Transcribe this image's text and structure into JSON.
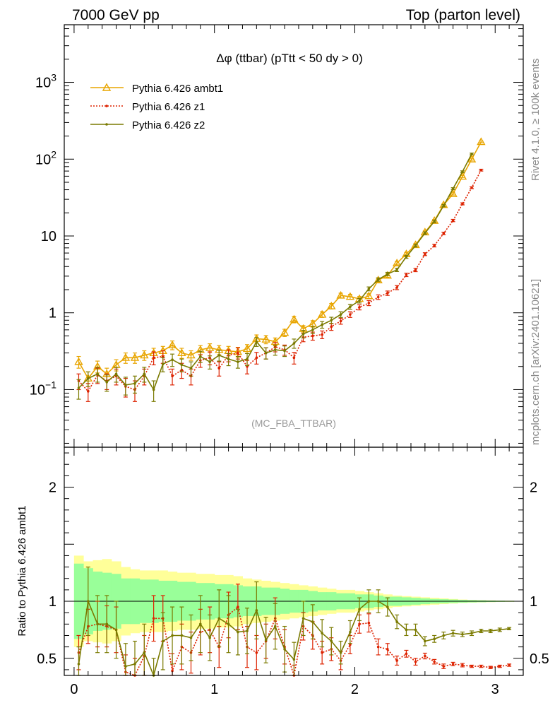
{
  "header": {
    "left_title": "7000 GeV pp",
    "right_title": "Top (parton level)"
  },
  "side_labels": {
    "rivet": "Rivet 4.1.0, ≥ 100k events",
    "mcplots": "mcplots.cern.ch [arXiv:2401.10621]"
  },
  "chart_data": {
    "type": "line",
    "title": "Δφ (ttbar) (pTtt < 50 dy > 0)",
    "watermark": "(MC_FBA_TTBAR)",
    "ylabel_ratio": "Ratio to Pythia 6.426 ambt1",
    "xlim": [
      -0.07,
      3.2
    ],
    "main_ylim_log10": [
      -1.75,
      3.75
    ],
    "ratio_ylim": [
      0.35,
      2.35
    ],
    "x_ticks": [
      "0",
      "1",
      "2",
      "3"
    ],
    "main_y_ticks": [
      "10^-1",
      "1",
      "10",
      "10^2",
      "10^3"
    ],
    "ratio_y_ticks": [
      "0.5",
      "1",
      "2"
    ],
    "x": [
      0.033,
      0.1,
      0.167,
      0.233,
      0.3,
      0.367,
      0.433,
      0.5,
      0.567,
      0.633,
      0.7,
      0.767,
      0.833,
      0.9,
      0.967,
      1.033,
      1.1,
      1.167,
      1.233,
      1.3,
      1.367,
      1.433,
      1.5,
      1.567,
      1.633,
      1.7,
      1.767,
      1.833,
      1.9,
      1.967,
      2.033,
      2.1,
      2.167,
      2.233,
      2.3,
      2.367,
      2.433,
      2.5,
      2.567,
      2.633,
      2.7,
      2.767,
      2.833,
      2.9,
      2.967,
      3.033,
      3.1
    ],
    "series": [
      {
        "name": "Pythia 6.426 ambt1",
        "color": "#e8a500",
        "style": "solid-triangle",
        "values": [
          0.23,
          0.14,
          0.2,
          0.16,
          0.21,
          0.26,
          0.26,
          0.28,
          0.3,
          0.32,
          0.38,
          0.3,
          0.28,
          0.33,
          0.35,
          0.33,
          0.32,
          0.31,
          0.34,
          0.46,
          0.45,
          0.42,
          0.55,
          0.82,
          0.62,
          0.72,
          0.95,
          1.22,
          1.68,
          1.62,
          1.52,
          1.65,
          2.66,
          3.06,
          4.42,
          5.82,
          7.65,
          11.2,
          15.8,
          25.4,
          35.3,
          59.5,
          99.8,
          168.0,
          0,
          0,
          0
        ],
        "errors": [
          0.04,
          0.03,
          0.035,
          0.03,
          0.035,
          0.04,
          0.04,
          0.04,
          0.045,
          0.045,
          0.05,
          0.045,
          0.04,
          0.045,
          0.045,
          0.045,
          0.045,
          0.045,
          0.045,
          0.055,
          0.055,
          0.05,
          0.06,
          0.08,
          0.06,
          0.07,
          0.08,
          0.1,
          0.12,
          0.12,
          0.11,
          0.12,
          0.15,
          0.17,
          0.22,
          0.28,
          0.35,
          0.45,
          0.6,
          0.9,
          1.2,
          1.8,
          2.8,
          4.5,
          0,
          0,
          0
        ]
      },
      {
        "name": "Pythia 6.426 z1",
        "color": "#dd2200",
        "style": "dotted-dot",
        "values": [
          0.13,
          0.095,
          0.155,
          0.13,
          0.15,
          0.11,
          0.1,
          0.15,
          0.26,
          0.27,
          0.15,
          0.18,
          0.15,
          0.24,
          0.26,
          0.19,
          0.28,
          0.3,
          0.2,
          0.26,
          0.3,
          0.36,
          0.33,
          0.26,
          0.48,
          0.5,
          0.52,
          0.66,
          0.78,
          0.95,
          1.18,
          1.34,
          1.6,
          1.8,
          2.13,
          3.12,
          3.61,
          5.8,
          7.5,
          10.8,
          15.9,
          26.2,
          42.5,
          72.0,
          0,
          0,
          0
        ],
        "errors": [
          0.03,
          0.025,
          0.035,
          0.03,
          0.035,
          0.03,
          0.03,
          0.035,
          0.05,
          0.05,
          0.035,
          0.04,
          0.035,
          0.045,
          0.05,
          0.04,
          0.05,
          0.05,
          0.04,
          0.045,
          0.05,
          0.05,
          0.05,
          0.045,
          0.06,
          0.06,
          0.06,
          0.07,
          0.07,
          0.08,
          0.09,
          0.1,
          0.11,
          0.12,
          0.13,
          0.16,
          0.18,
          0.25,
          0.3,
          0.4,
          0.55,
          0.8,
          1.2,
          2.0,
          0,
          0,
          0
        ]
      },
      {
        "name": "Pythia 6.426 z2",
        "color": "#7a7a00",
        "style": "solid-dot",
        "values": [
          0.105,
          0.14,
          0.16,
          0.125,
          0.16,
          0.115,
          0.12,
          0.16,
          0.1,
          0.215,
          0.245,
          0.21,
          0.19,
          0.27,
          0.23,
          0.28,
          0.25,
          0.23,
          0.25,
          0.42,
          0.3,
          0.33,
          0.32,
          0.4,
          0.53,
          0.6,
          0.7,
          0.8,
          0.95,
          1.2,
          1.44,
          2.05,
          2.71,
          3.2,
          3.62,
          5.35,
          7.5,
          10.9,
          15.5,
          24.8,
          41.3,
          68.5,
          117.0,
          0,
          0,
          0,
          0
        ],
        "errors": [
          0.03,
          0.03,
          0.035,
          0.03,
          0.035,
          0.03,
          0.03,
          0.035,
          0.03,
          0.045,
          0.045,
          0.04,
          0.04,
          0.045,
          0.045,
          0.045,
          0.045,
          0.04,
          0.045,
          0.055,
          0.05,
          0.05,
          0.05,
          0.055,
          0.06,
          0.065,
          0.07,
          0.075,
          0.08,
          0.09,
          0.1,
          0.12,
          0.14,
          0.16,
          0.18,
          0.24,
          0.3,
          0.4,
          0.55,
          0.8,
          1.2,
          1.9,
          3.0,
          0,
          0,
          0,
          0
        ]
      }
    ],
    "ratio_band_yellow": [
      0.4,
      0.35,
      0.36,
      0.37,
      0.35,
      0.3,
      0.28,
      0.27,
      0.27,
      0.27,
      0.26,
      0.25,
      0.25,
      0.24,
      0.24,
      0.23,
      0.23,
      0.22,
      0.2,
      0.19,
      0.18,
      0.17,
      0.16,
      0.15,
      0.14,
      0.13,
      0.12,
      0.11,
      0.1,
      0.1,
      0.09,
      0.08,
      0.07,
      0.06,
      0.05,
      0.045,
      0.04,
      0.035,
      0.03,
      0.025,
      0.02,
      0.015,
      0.012,
      0.01,
      0.008,
      0.006,
      0.005
    ],
    "ratio_band_green": [
      0.33,
      0.29,
      0.26,
      0.25,
      0.24,
      0.2,
      0.2,
      0.19,
      0.19,
      0.18,
      0.18,
      0.17,
      0.17,
      0.16,
      0.16,
      0.15,
      0.15,
      0.14,
      0.13,
      0.13,
      0.12,
      0.12,
      0.11,
      0.1,
      0.1,
      0.09,
      0.08,
      0.08,
      0.07,
      0.07,
      0.06,
      0.06,
      0.05,
      0.04,
      0.04,
      0.035,
      0.03,
      0.025,
      0.02,
      0.018,
      0.015,
      0.012,
      0.01,
      0.008,
      0.006,
      0.005,
      0.004
    ],
    "ratio_series": [
      {
        "name": "Pythia 6.426 z1",
        "color": "#dd2200",
        "values": [
          0.55,
          0.78,
          0.8,
          0.78,
          0.75,
          0.38,
          0.35,
          0.52,
          0.85,
          0.85,
          0.39,
          0.6,
          0.55,
          0.73,
          0.75,
          0.6,
          0.88,
          0.95,
          0.6,
          0.55,
          0.65,
          0.85,
          0.6,
          0.32,
          0.78,
          0.7,
          0.55,
          0.58,
          0.48,
          0.62,
          0.8,
          0.81,
          0.6,
          0.58,
          0.48,
          0.54,
          0.47,
          0.52,
          0.47,
          0.43,
          0.45,
          0.44,
          0.43,
          0.43,
          0.42,
          0.43,
          0.44
        ],
        "errors": [
          0.15,
          0.15,
          0.2,
          0.18,
          0.2,
          0.15,
          0.15,
          0.18,
          0.2,
          0.2,
          0.15,
          0.2,
          0.18,
          0.2,
          0.2,
          0.18,
          0.2,
          0.2,
          0.18,
          0.15,
          0.15,
          0.18,
          0.15,
          0.12,
          0.12,
          0.12,
          0.1,
          0.1,
          0.08,
          0.08,
          0.08,
          0.08,
          0.07,
          0.05,
          0.04,
          0.03,
          0.03,
          0.025,
          0.02,
          0.02,
          0.015,
          0.015,
          0.01,
          0.01,
          0.01,
          0.01,
          0.01
        ]
      },
      {
        "name": "Pythia 6.426 z2",
        "color": "#7a7a00",
        "values": [
          0.45,
          1.0,
          0.8,
          0.8,
          0.75,
          0.43,
          0.45,
          0.55,
          0.3,
          0.65,
          0.7,
          0.7,
          0.68,
          0.8,
          0.68,
          0.85,
          0.8,
          0.73,
          0.74,
          0.92,
          0.66,
          0.78,
          0.58,
          0.49,
          0.85,
          0.82,
          0.72,
          0.65,
          0.55,
          0.73,
          0.93,
          1.0,
          1.0,
          0.95,
          0.82,
          0.75,
          0.75,
          0.65,
          0.67,
          0.7,
          0.72,
          0.71,
          0.72,
          0.74,
          0.74,
          0.75,
          0.76
        ],
        "errors": [
          0.15,
          0.3,
          0.25,
          0.25,
          0.25,
          0.2,
          0.2,
          0.25,
          0.2,
          0.25,
          0.25,
          0.25,
          0.2,
          0.25,
          0.2,
          0.25,
          0.25,
          0.2,
          0.2,
          0.25,
          0.2,
          0.2,
          0.2,
          0.15,
          0.15,
          0.15,
          0.12,
          0.12,
          0.1,
          0.1,
          0.1,
          0.1,
          0.1,
          0.08,
          0.06,
          0.05,
          0.05,
          0.04,
          0.03,
          0.03,
          0.025,
          0.02,
          0.02,
          0.015,
          0.015,
          0.015,
          0.01
        ]
      }
    ]
  }
}
